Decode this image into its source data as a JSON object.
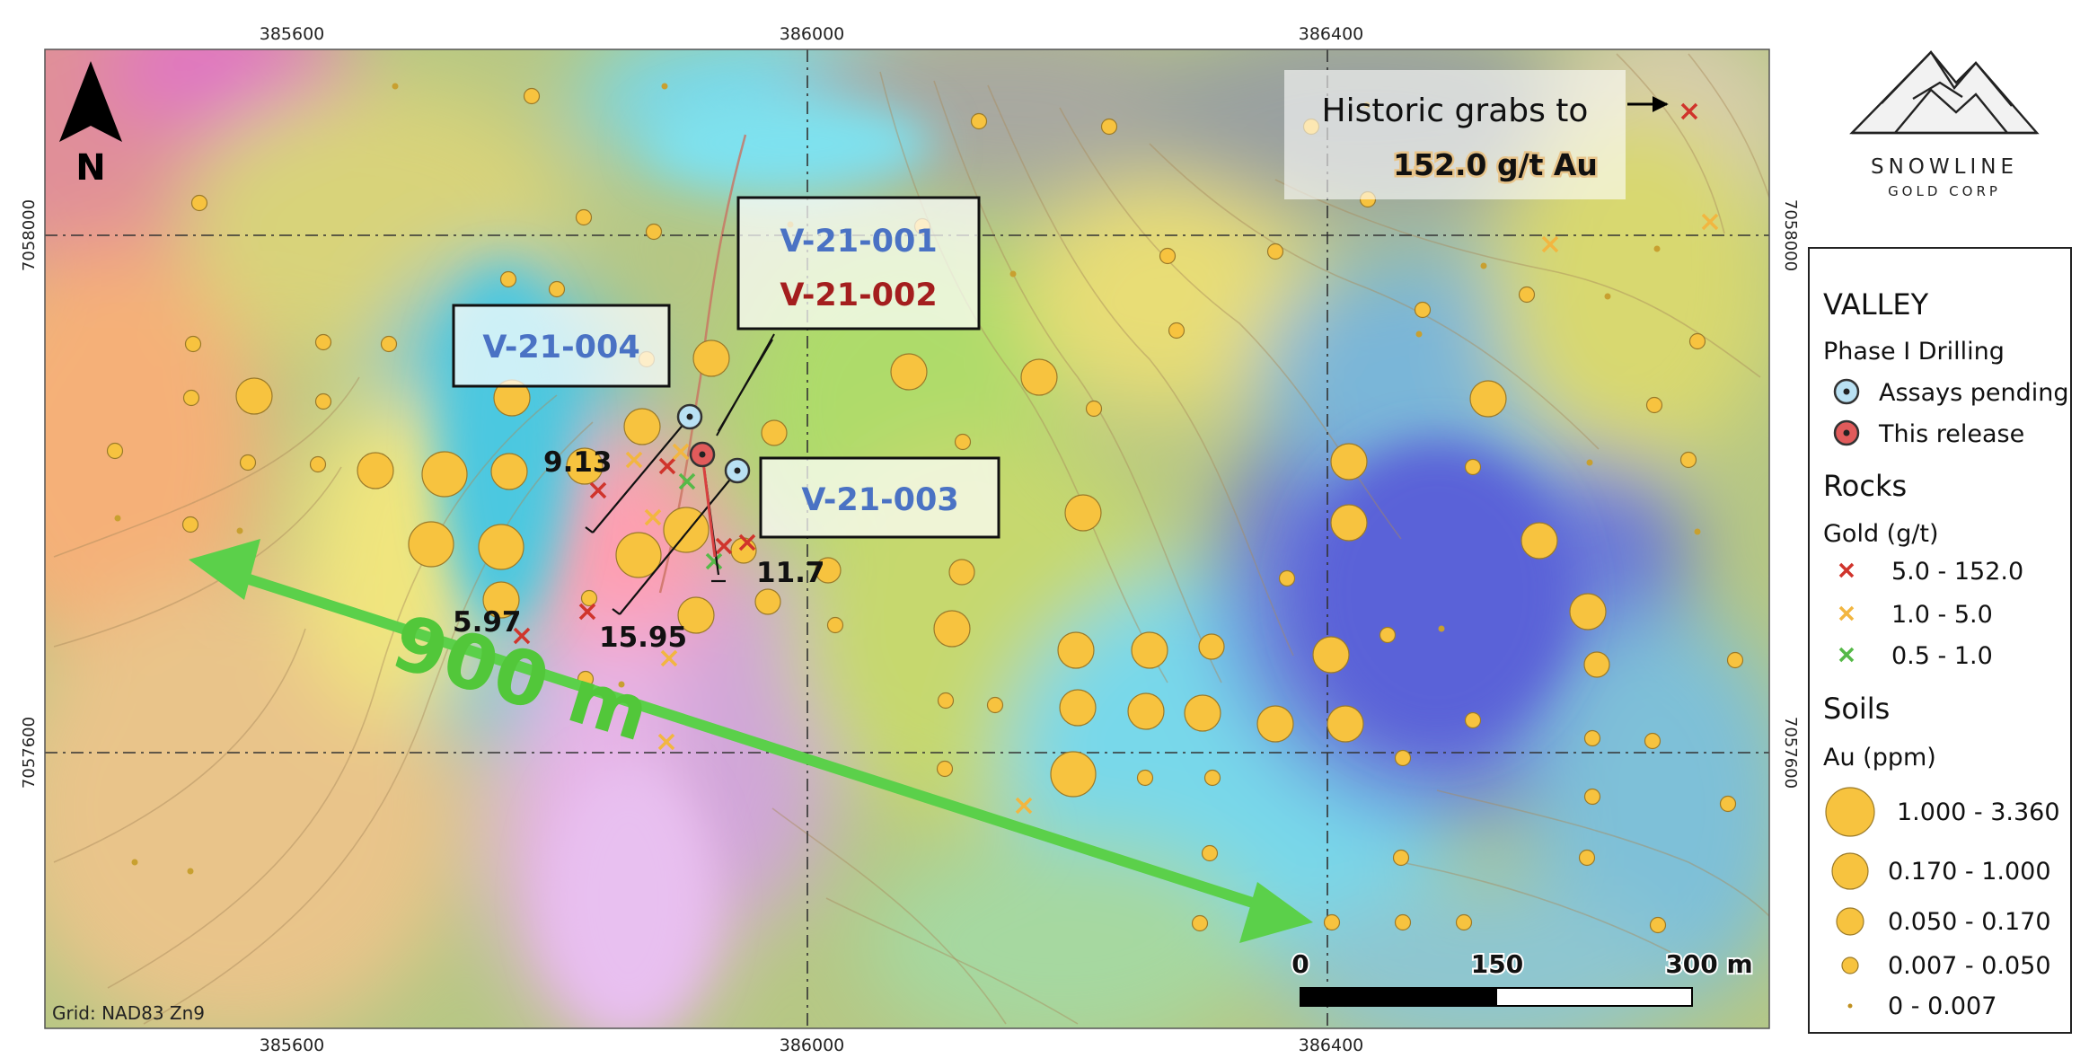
{
  "coordinates": {
    "eastings": [
      "385600",
      "386000",
      "386400"
    ],
    "northings": [
      "7058000",
      "7057600"
    ]
  },
  "north_arrow": {
    "label": "N",
    "icon": "north-arrow-icon"
  },
  "grid_note": "Grid: NAD83 Zn9",
  "drill_labels": {
    "v001": "V-21-001",
    "v002": "V-21-002",
    "v003": "V-21-003",
    "v004": "V-21-004"
  },
  "assay_labels": {
    "a913": "9.13",
    "a117": "11.7",
    "a597": "5.97",
    "a1595": "15.95"
  },
  "distance_label": "900 m",
  "historic": {
    "line1": "Historic grabs to",
    "line2": "152.0 g/t Au"
  },
  "scale_bar": {
    "zero": "0",
    "mid": "150",
    "end": "300 m"
  },
  "logo": {
    "name": "SNOWLINE",
    "sub": "GOLD CORP"
  },
  "legend": {
    "title": "VALLEY",
    "drilling_heading": "Phase I Drilling",
    "assays_pending": "Assays pending",
    "this_release": "This release",
    "rocks_heading": "Rocks",
    "gold_heading": "Gold (g/t)",
    "rock_classes": [
      "5.0 - 152.0",
      "1.0 - 5.0",
      "0.5 - 1.0"
    ],
    "soils_heading": "Soils",
    "au_heading": "Au (ppm)",
    "soil_classes": [
      "1.000 - 3.360",
      "0.170 - 1.000",
      "0.050 - 0.170",
      "0.007 - 0.050",
      "0 - 0.007"
    ]
  },
  "colors": {
    "rock_high": "#d0342c",
    "rock_mid": "#f2b640",
    "rock_low": "#56b948",
    "soil_fill": "#f7c33f",
    "pending_fill": "#b9e1f3",
    "release_fill": "#e15b5b",
    "arrow_green": "#5bd04a",
    "label_blue": "#4a72c4",
    "label_red": "#a41e1e"
  }
}
